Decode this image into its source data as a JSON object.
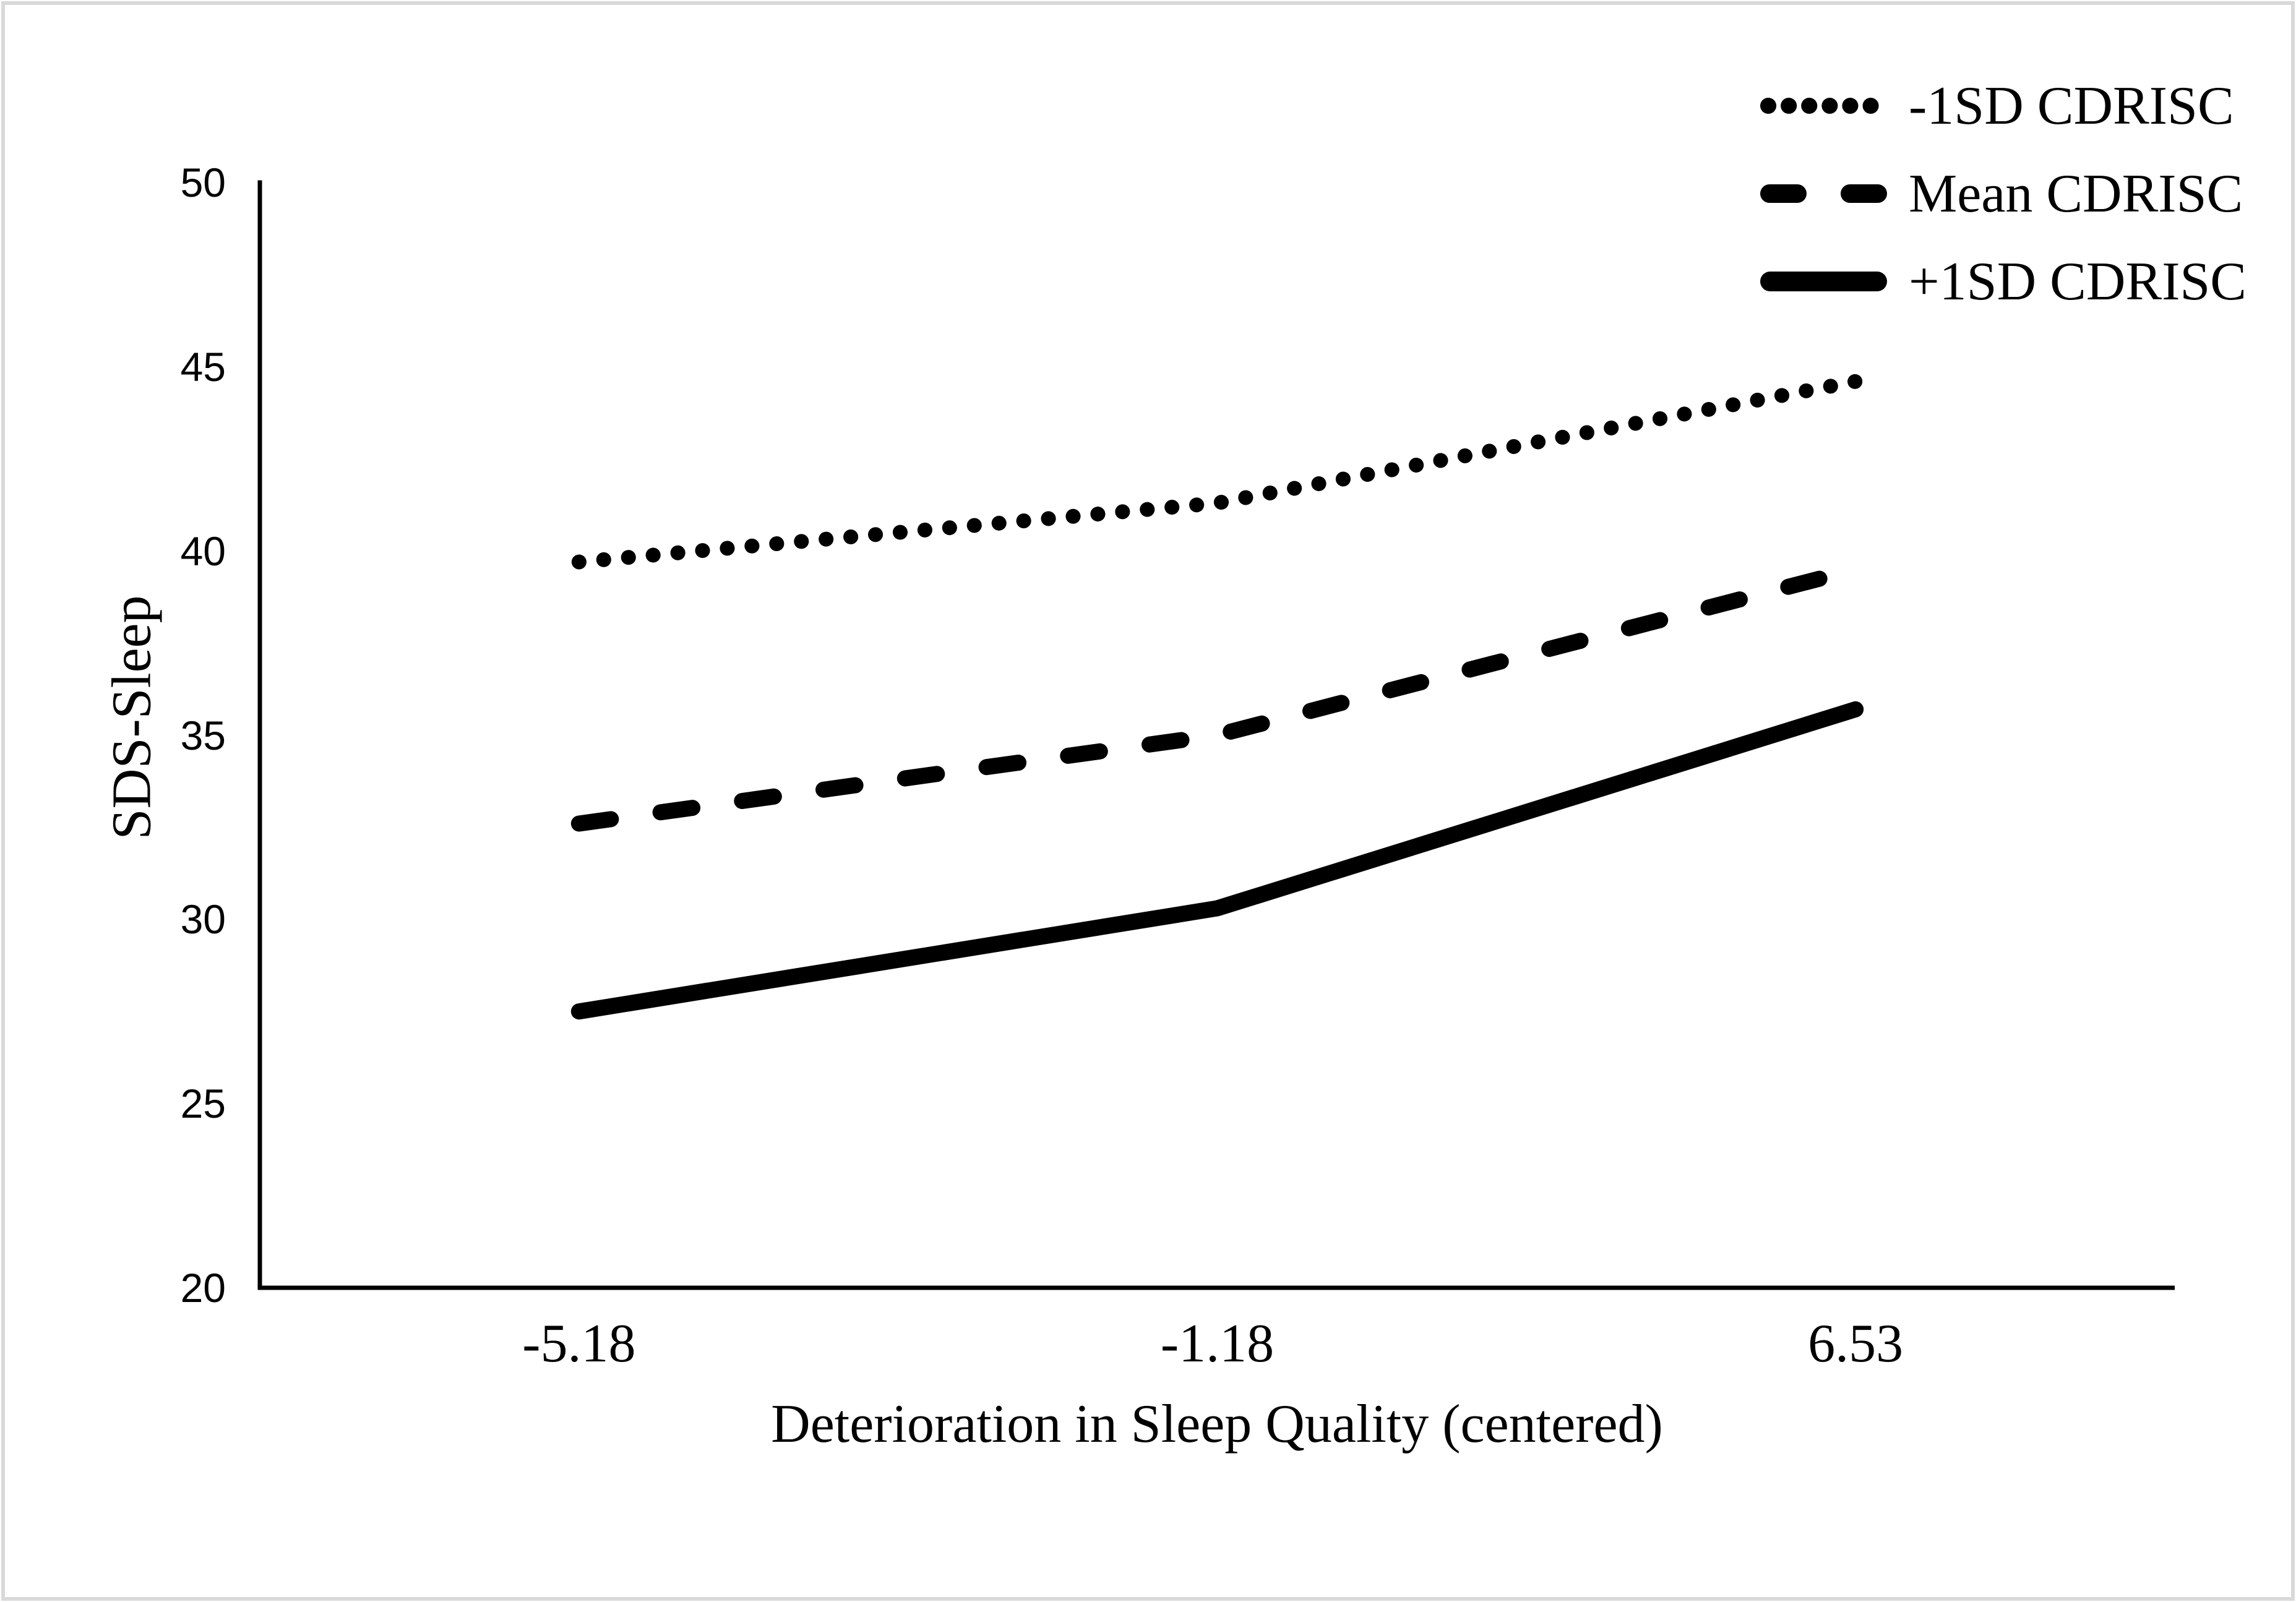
{
  "figure": {
    "background": "#ffffff",
    "border_color": "#d9d9d9",
    "line_color": "#000000"
  },
  "chart_data": {
    "type": "line",
    "title": "",
    "xlabel": "Deterioration in Sleep Quality (centered)",
    "ylabel": "SDS-Sleep",
    "categories": [
      "-5.18",
      "-1.18",
      "6.53"
    ],
    "ylim": [
      20,
      50
    ],
    "yticks": [
      20,
      25,
      30,
      35,
      40,
      45,
      50
    ],
    "grid": false,
    "legend_position": "top-right",
    "series": [
      {
        "name": "-1SD CDRISC",
        "style": "dotted",
        "values": [
          39.7,
          41.3,
          44.6
        ]
      },
      {
        "name": "Mean CDRISC",
        "style": "dashed",
        "values": [
          32.6,
          35.0,
          39.5
        ]
      },
      {
        "name": "+1SD CDRISC",
        "style": "solid",
        "values": [
          27.5,
          30.3,
          35.7
        ]
      }
    ]
  }
}
